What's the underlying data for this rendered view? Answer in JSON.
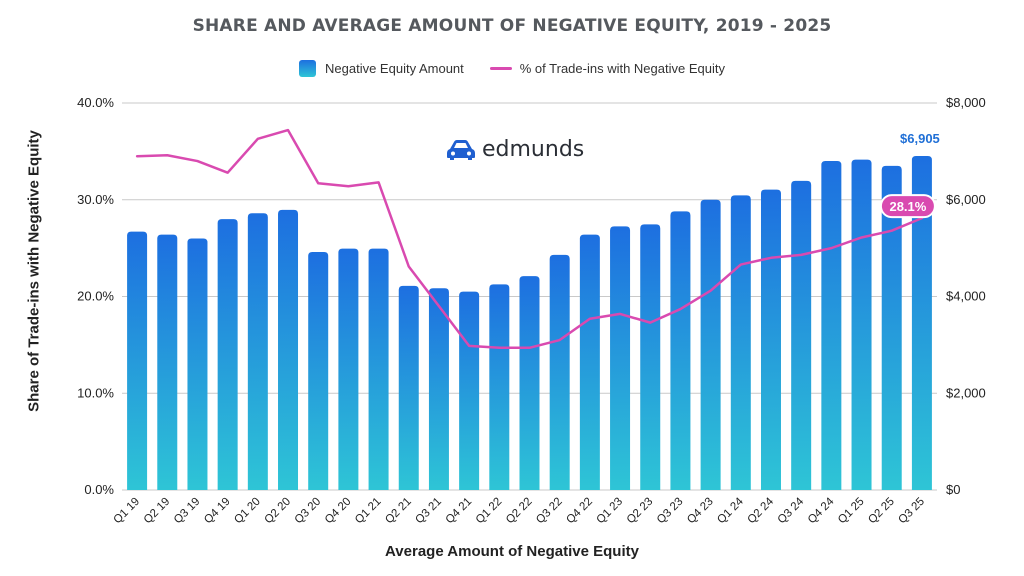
{
  "chart_data": {
    "type": "bar",
    "title": "SHARE AND AVERAGE AMOUNT OF NEGATIVE EQUITY, 2019 - 2025",
    "xlabel": "Average Amount of Negative Equity",
    "ylabel": "Share of Trade-ins with Negative Equity",
    "brand": "edmunds",
    "categories": [
      "Q1 19",
      "Q2 19",
      "Q3 19",
      "Q4 19",
      "Q1 20",
      "Q2 20",
      "Q3 20",
      "Q4 20",
      "Q1 21",
      "Q2 21",
      "Q3 21",
      "Q4 21",
      "Q1 22",
      "Q2 22",
      "Q3 22",
      "Q4 22",
      "Q1 23",
      "Q2 23",
      "Q3 23",
      "Q4 23",
      "Q1 24",
      "Q2 24",
      "Q3 24",
      "Q4 24",
      "Q1 25",
      "Q2 25",
      "Q3 25"
    ],
    "series": [
      {
        "name": "Negative Equity Amount",
        "axis": "right",
        "type": "bar",
        "values": [
          5340,
          5280,
          5200,
          5600,
          5720,
          5790,
          4920,
          4990,
          4990,
          4220,
          4170,
          4100,
          4250,
          4420,
          4860,
          5280,
          5450,
          5490,
          5760,
          6000,
          6090,
          6210,
          6390,
          6800,
          6830,
          6700,
          6905
        ]
      },
      {
        "name": "% of Trade-ins with Negative Equity",
        "axis": "left",
        "type": "line",
        "values": [
          34.5,
          34.6,
          34.0,
          32.8,
          36.3,
          37.2,
          31.7,
          31.4,
          31.8,
          23.1,
          19.0,
          14.9,
          14.7,
          14.7,
          15.5,
          17.7,
          18.2,
          17.3,
          18.7,
          20.6,
          23.3,
          24.0,
          24.3,
          25.0,
          26.1,
          26.8,
          28.1
        ]
      }
    ],
    "y_left": {
      "ticks": [
        "0.0%",
        "10.0%",
        "20.0%",
        "30.0%",
        "40.0%"
      ],
      "ylim": [
        0,
        40
      ]
    },
    "y_right": {
      "ticks": [
        "$0",
        "$2,000",
        "$4,000",
        "$6,000",
        "$8,000"
      ],
      "ylim": [
        0,
        8000
      ]
    },
    "annotations": {
      "last_bar_label": "$6,905",
      "last_line_label": "28.1%"
    },
    "grid": true,
    "legend_position": "top-center",
    "colors": {
      "bar_top": "#1d6fe0",
      "bar_bottom": "#2ec5d6",
      "line": "#d94ab0",
      "bar_label": "#1f6fd6",
      "title": "#55595e"
    }
  }
}
